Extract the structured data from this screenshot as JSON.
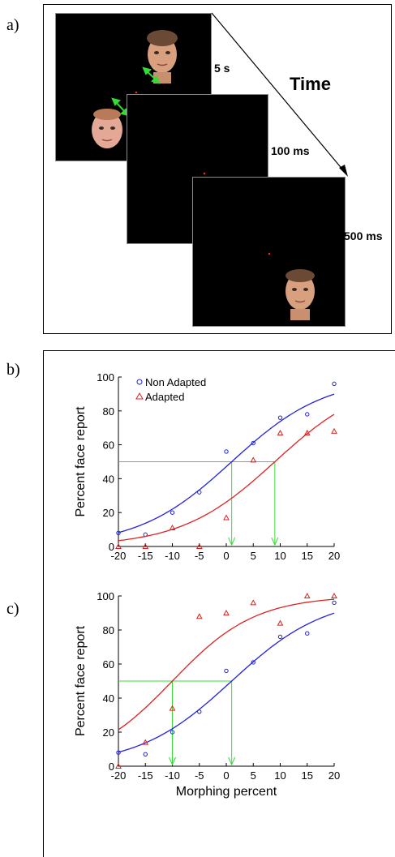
{
  "figure": {
    "panel_a": {
      "label": "a)",
      "time_label": "Time",
      "timings": [
        "5 s",
        "100 ms",
        "500 ms"
      ]
    },
    "panel_b": {
      "label": "b)"
    },
    "panel_c": {
      "label": "c)"
    }
  },
  "chart_data": [
    {
      "type": "scatter",
      "panel": "b",
      "ylabel": "Percent face report",
      "xlabel": "",
      "xlim": [
        -20,
        20
      ],
      "ylim": [
        0,
        100
      ],
      "x_ticks": [
        -20,
        -15,
        -10,
        -5,
        0,
        5,
        10,
        15,
        20
      ],
      "y_ticks": [
        0,
        20,
        40,
        60,
        80,
        100
      ],
      "legend_position": "top-left",
      "series": [
        {
          "name": "Non Adapted",
          "marker": "circle",
          "color": "#2222dd",
          "x": [
            -20,
            -15,
            -10,
            -5,
            0,
            5,
            10,
            15,
            20
          ],
          "y": [
            8,
            7,
            20,
            32,
            56,
            61,
            76,
            78,
            96
          ],
          "fit_threshold": 1,
          "fit_slope": 0.115
        },
        {
          "name": "Adapted",
          "marker": "triangle",
          "color": "#dd2222",
          "x": [
            -20,
            -15,
            -10,
            -5,
            0,
            5,
            10,
            15,
            20
          ],
          "y": [
            0,
            0,
            11,
            0,
            17,
            51,
            67,
            67,
            68
          ],
          "fit_threshold": 9,
          "fit_slope": 0.115
        }
      ],
      "threshold_lines": [
        {
          "x": 1,
          "y": 50
        },
        {
          "x": 9,
          "y": 50
        }
      ],
      "threshold_color": "#33dd33"
    },
    {
      "type": "scatter",
      "panel": "c",
      "ylabel": "Percent face report",
      "xlabel": "Morphing percent",
      "xlim": [
        -20,
        20
      ],
      "ylim": [
        0,
        100
      ],
      "x_ticks": [
        -20,
        -15,
        -10,
        -5,
        0,
        5,
        10,
        15,
        20
      ],
      "y_ticks": [
        0,
        20,
        40,
        60,
        80,
        100
      ],
      "series": [
        {
          "name": "Non Adapted",
          "marker": "circle",
          "color": "#2222dd",
          "x": [
            -20,
            -15,
            -10,
            -5,
            0,
            5,
            10,
            15,
            20
          ],
          "y": [
            8,
            7,
            20,
            32,
            56,
            61,
            76,
            78,
            96
          ],
          "fit_threshold": 1,
          "fit_slope": 0.115
        },
        {
          "name": "Adapted",
          "marker": "triangle",
          "color": "#dd2222",
          "x": [
            -20,
            -15,
            -10,
            -5,
            0,
            5,
            10,
            15,
            20
          ],
          "y": [
            0,
            14,
            34,
            88,
            90,
            96,
            84,
            100,
            100
          ],
          "fit_threshold": -10,
          "fit_slope": 0.13
        }
      ],
      "threshold_lines": [
        {
          "x": -10,
          "y": 50
        },
        {
          "x": 1,
          "y": 50
        }
      ],
      "threshold_color": "#33dd33"
    }
  ]
}
